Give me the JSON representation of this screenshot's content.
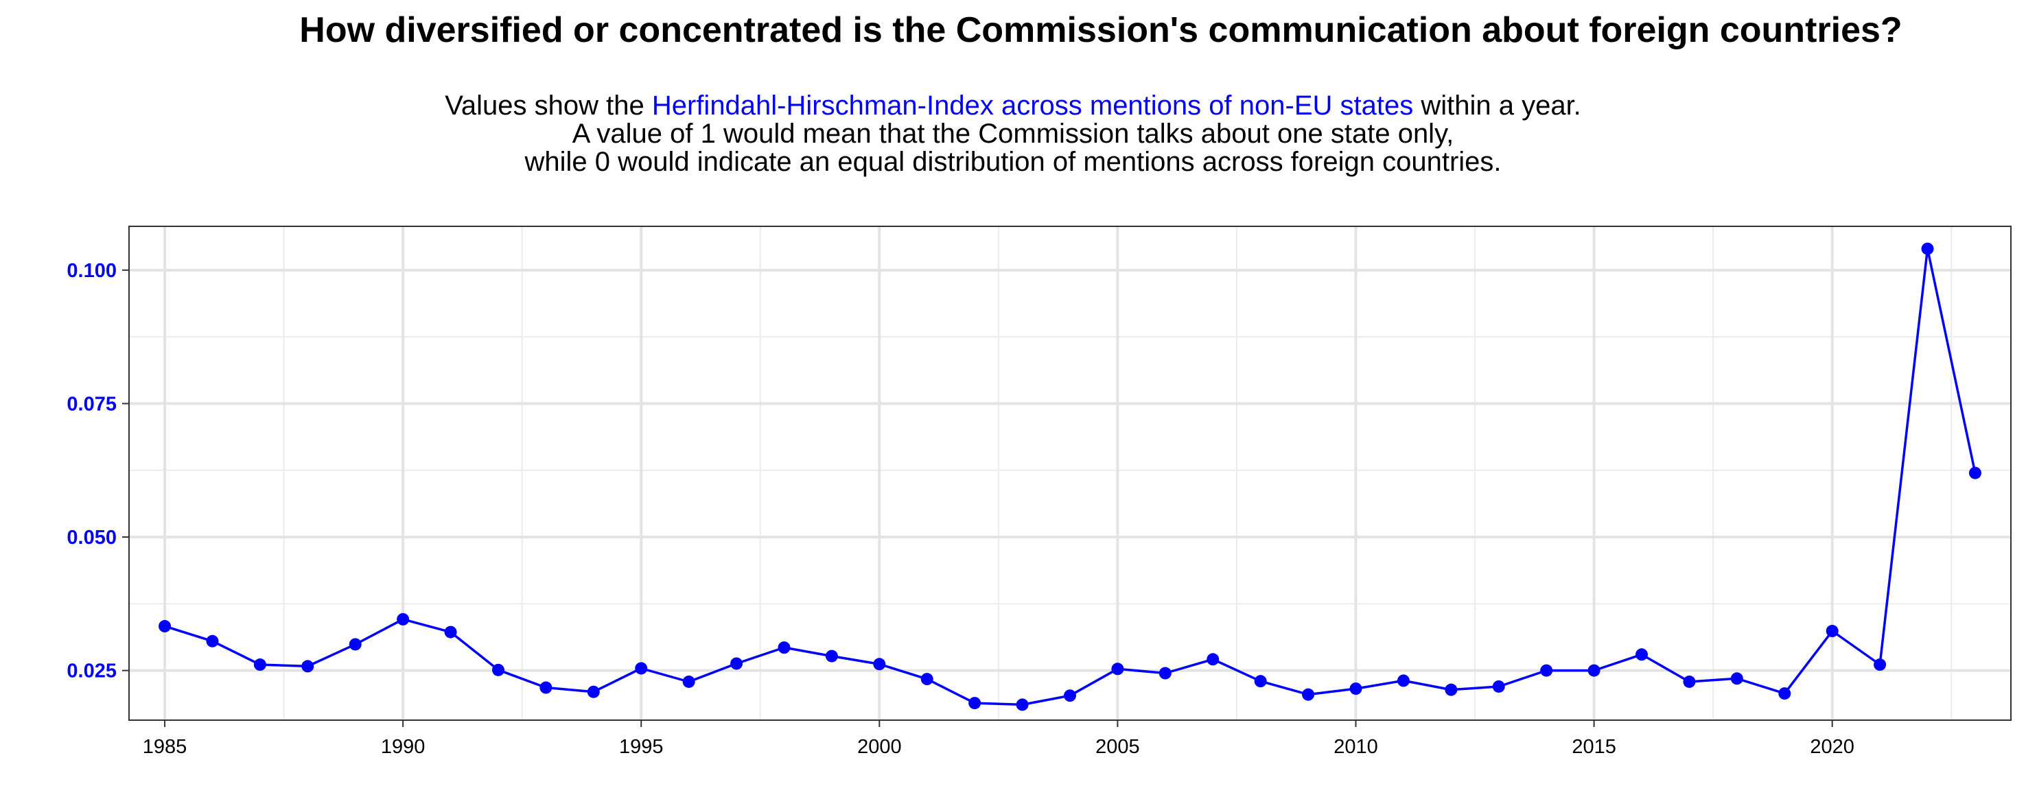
{
  "chart_data": {
    "type": "line",
    "title": "How diversified or concentrated is the Commission's communication about foreign countries?",
    "subtitle": {
      "line1_pre": "Values show the ",
      "line1_highlight": "Herfindahl-Hirschman-Index across mentions of non-EU states",
      "line1_post": " within a year.",
      "line2": "A value of 1 would mean that the Commission talks about one state only,",
      "line3": "while 0 would indicate an equal distribution of mentions across foreign countries."
    },
    "xlabel": "",
    "ylabel": "",
    "xlim": [
      1984.25,
      2023.75
    ],
    "ylim": [
      0.0157,
      0.1082
    ],
    "x_ticks": [
      1985,
      1990,
      1995,
      2000,
      2005,
      2010,
      2015,
      2020
    ],
    "y_ticks": [
      0.025,
      0.05,
      0.075,
      0.1
    ],
    "y_tick_labels": [
      "0.025",
      "0.050",
      "0.075",
      "0.100"
    ],
    "grid": true,
    "series": [
      {
        "color": "#0000ff",
        "x": [
          1985,
          1986,
          1987,
          1988,
          1989,
          1990,
          1991,
          1992,
          1993,
          1994,
          1995,
          1996,
          1997,
          1998,
          1999,
          2000,
          2001,
          2002,
          2003,
          2004,
          2005,
          2006,
          2007,
          2008,
          2009,
          2010,
          2011,
          2012,
          2013,
          2014,
          2015,
          2016,
          2017,
          2018,
          2019,
          2020,
          2021,
          2022,
          2023
        ],
        "y": [
          0.0333,
          0.0305,
          0.0261,
          0.0258,
          0.0299,
          0.0346,
          0.0322,
          0.0251,
          0.0218,
          0.021,
          0.0254,
          0.0229,
          0.0263,
          0.0293,
          0.0277,
          0.0262,
          0.0234,
          0.0189,
          0.0186,
          0.0203,
          0.0253,
          0.0245,
          0.0271,
          0.023,
          0.0205,
          0.0216,
          0.0231,
          0.0214,
          0.022,
          0.025,
          0.025,
          0.028,
          0.0229,
          0.0235,
          0.0207,
          0.0324,
          0.0261,
          0.104,
          0.062
        ]
      }
    ]
  }
}
